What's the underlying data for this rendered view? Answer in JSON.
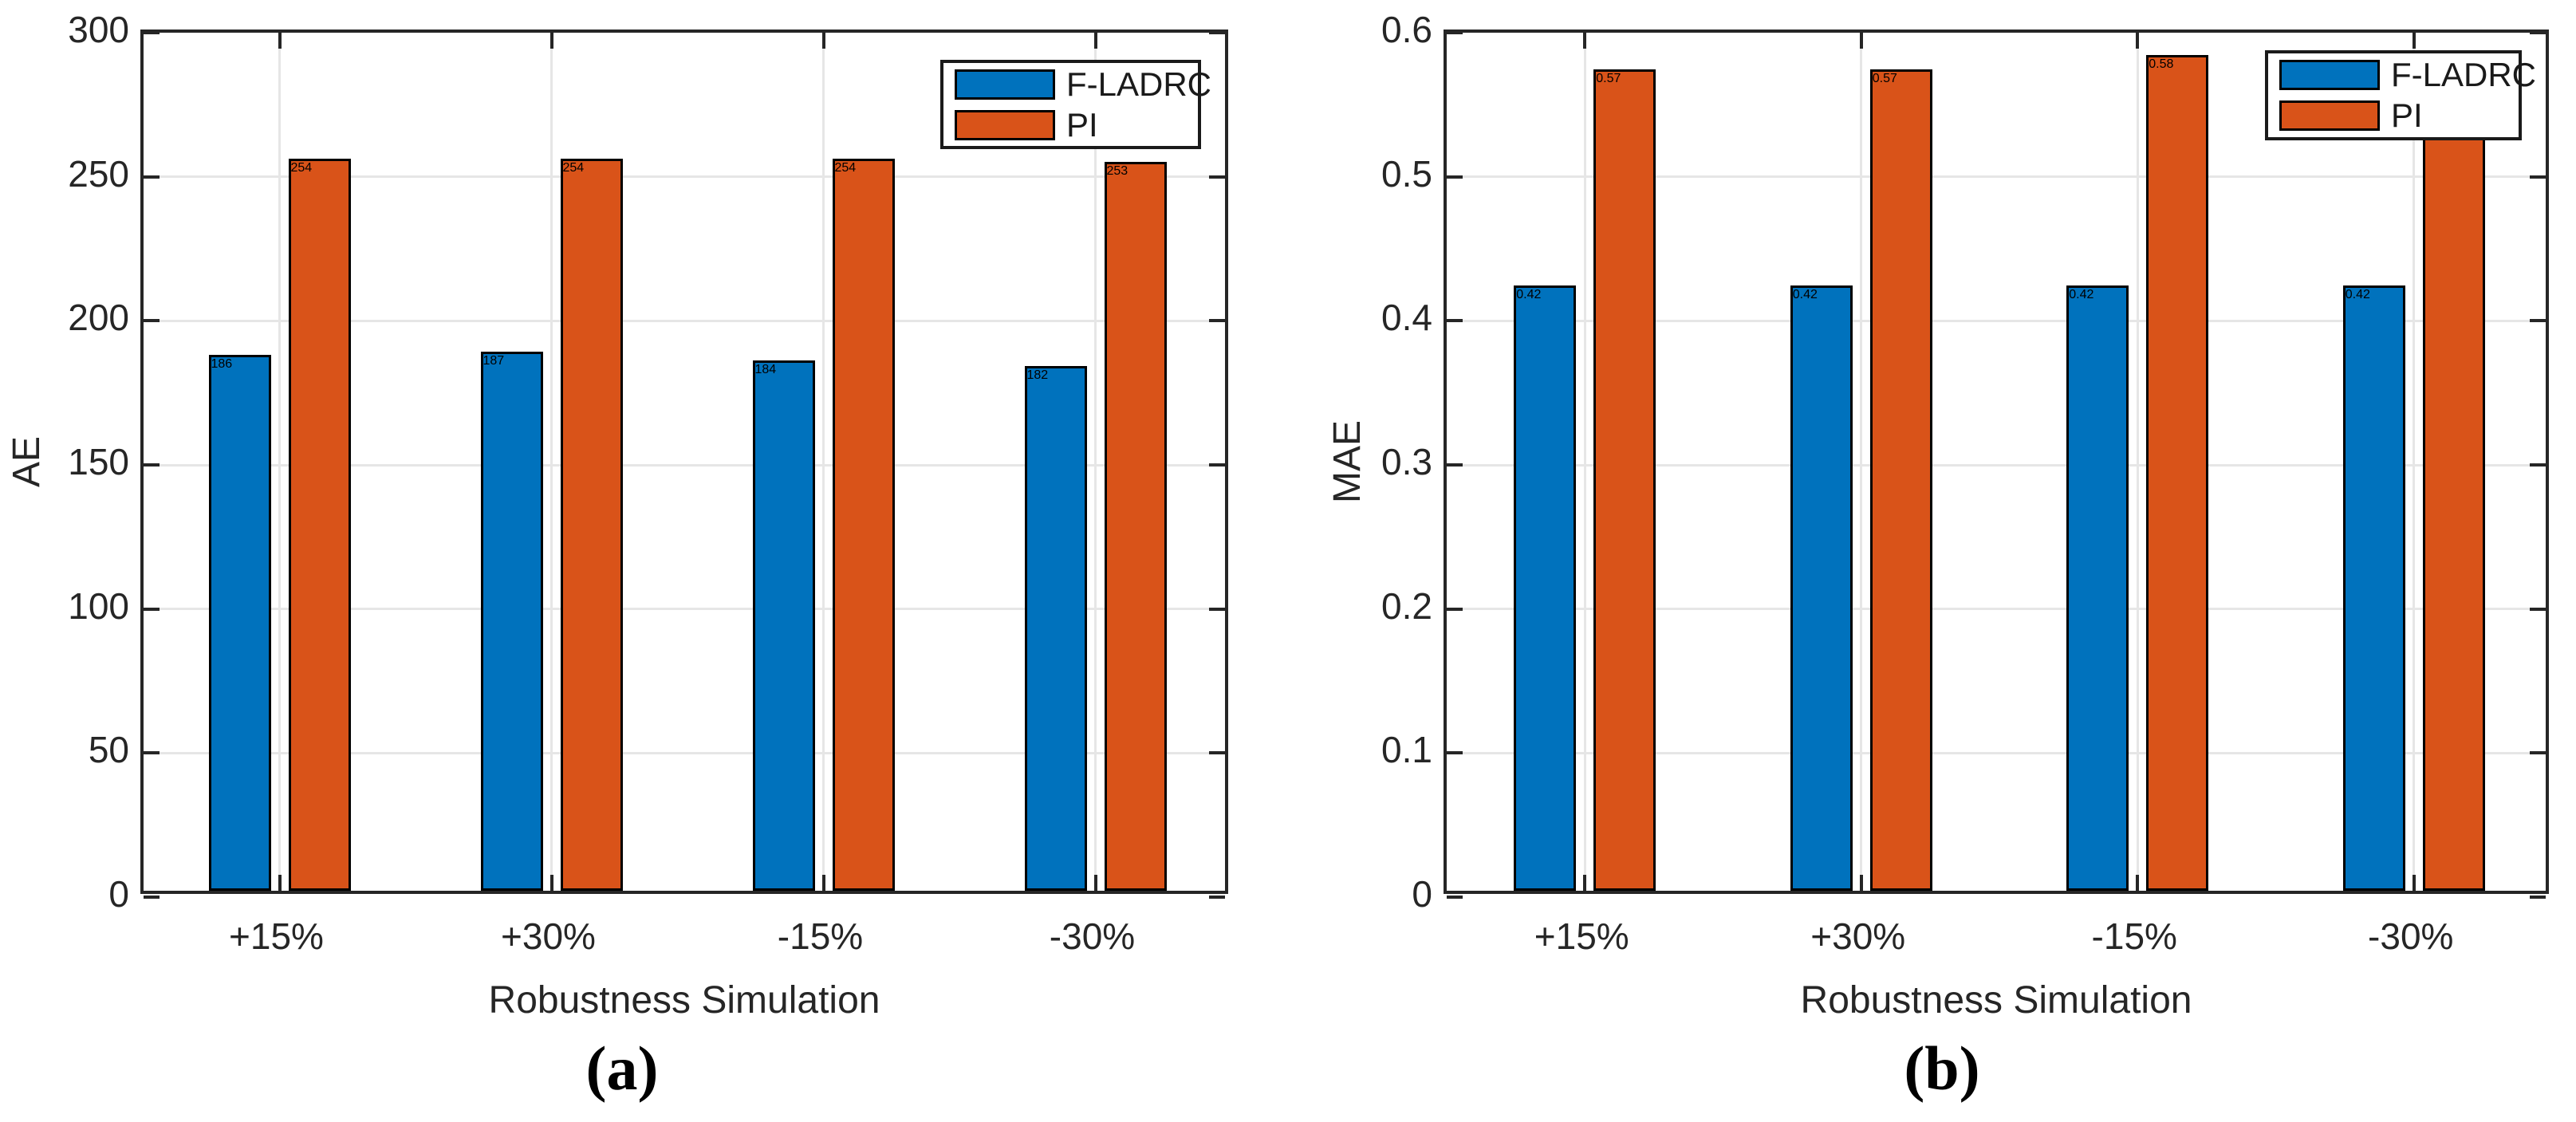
{
  "figure": {
    "background": "#FFFFFF",
    "captions": {
      "a": "(a)",
      "b": "(b)"
    }
  },
  "style": {
    "axis_color": "#262626",
    "grid_color": "#E6E6E6",
    "bar_edge_color": "#000000",
    "text_color": "#262626",
    "legend_border_color": "#1A1A1A",
    "series_blue": "#0072BD",
    "series_orange": "#D95319"
  },
  "chart_data": [
    {
      "type": "bar",
      "panel_caption": "(a)",
      "title": "",
      "xlabel": "Robustness Simulation",
      "ylabel": "AE",
      "categories": [
        "+15%",
        "+30%",
        "-15%",
        "-30%"
      ],
      "series": [
        {
          "name": "F-LADRC",
          "color": "#0072BD",
          "values": [
            186,
            187,
            184,
            182
          ]
        },
        {
          "name": "PI",
          "color": "#D95319",
          "values": [
            254,
            254,
            254,
            253
          ]
        }
      ],
      "ylim": [
        0,
        300
      ],
      "ytick_values": [
        0,
        50,
        100,
        150,
        200,
        250,
        300
      ],
      "ytick_labels": [
        "0",
        "50",
        "100",
        "150",
        "200",
        "250",
        "300"
      ],
      "grid": true,
      "legend": {
        "entries": [
          "F-LADRC",
          "PI"
        ],
        "position": "inside-top-right"
      }
    },
    {
      "type": "bar",
      "panel_caption": "(b)",
      "title": "",
      "xlabel": "Robustness Simulation",
      "ylabel": "MAE",
      "categories": [
        "+15%",
        "+30%",
        "-15%",
        "-30%"
      ],
      "series": [
        {
          "name": "F-LADRC",
          "color": "#0072BD",
          "values": [
            0.42,
            0.42,
            0.42,
            0.42
          ]
        },
        {
          "name": "PI",
          "color": "#D95319",
          "values": [
            0.57,
            0.57,
            0.58,
            0.57
          ]
        }
      ],
      "ylim": [
        0,
        0.6
      ],
      "ytick_values": [
        0,
        0.1,
        0.2,
        0.3,
        0.4,
        0.5,
        0.6
      ],
      "ytick_labels": [
        "0",
        "0.1",
        "0.2",
        "0.3",
        "0.4",
        "0.5",
        "0.6"
      ],
      "grid": true,
      "legend": {
        "entries": [
          "F-LADRC",
          "PI"
        ],
        "position": "inside-top-right"
      }
    }
  ]
}
